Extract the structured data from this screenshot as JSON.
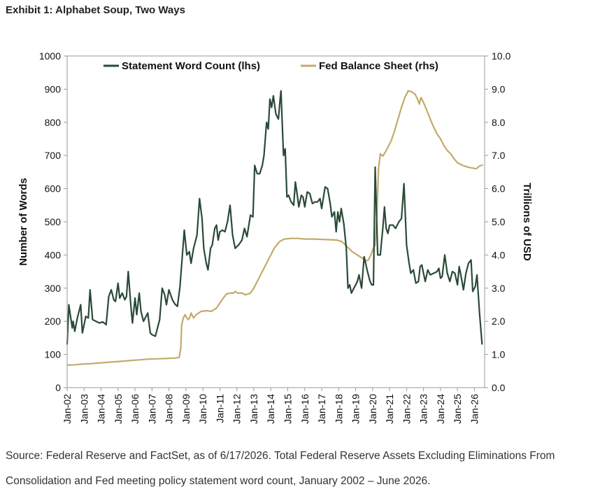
{
  "title": "Exhibit 1: Alphabet Soup, Two Ways",
  "source_note": "Source: Federal Reserve and FactSet, as of 6/17/2026. Total Federal Reserve Assets Excluding Eliminations From Consolidation and Fed meeting policy statement word count, January 2002 – June 2026.",
  "chart_data": {
    "type": "line",
    "title": "",
    "xlabel": "",
    "ylabel": "Number of Words",
    "y2label": "Trillions of USD",
    "xlim": [
      2002.0,
      2026.6
    ],
    "ylim": [
      0,
      1000
    ],
    "y2lim": [
      0,
      10
    ],
    "yticks": [
      "0",
      "100",
      "200",
      "300",
      "400",
      "500",
      "600",
      "700",
      "800",
      "900",
      "1000"
    ],
    "y2ticks": [
      "0.0",
      "1.0",
      "2.0",
      "3.0",
      "4.0",
      "5.0",
      "6.0",
      "7.0",
      "8.0",
      "9.0",
      "10.0"
    ],
    "xticks": [
      "Jan-02",
      "Jan-03",
      "Jan-04",
      "Jan-05",
      "Jan-06",
      "Jan-07",
      "Jan-08",
      "Jan-09",
      "Jan-10",
      "Jan-11",
      "Jan-12",
      "Jan-13",
      "Jan-14",
      "Jan-15",
      "Jan-16",
      "Jan-17",
      "Jan-18",
      "Jan-19",
      "Jan-20",
      "Jan-21",
      "Jan-22",
      "Jan-23",
      "Jan-24",
      "Jan-25",
      "Jan-26"
    ],
    "legend": "top-center",
    "grid": false,
    "series": [
      {
        "name": "Statement Word Count (lhs)",
        "axis": "left",
        "color": "#2a4a37",
        "points": [
          [
            2002.0,
            130
          ],
          [
            2002.1,
            250
          ],
          [
            2002.3,
            180
          ],
          [
            2002.35,
            200
          ],
          [
            2002.45,
            170
          ],
          [
            2002.6,
            210
          ],
          [
            2002.8,
            250
          ],
          [
            2002.9,
            165
          ],
          [
            2003.1,
            215
          ],
          [
            2003.25,
            210
          ],
          [
            2003.35,
            295
          ],
          [
            2003.5,
            205
          ],
          [
            2003.7,
            200
          ],
          [
            2003.9,
            195
          ],
          [
            2004.1,
            198
          ],
          [
            2004.3,
            190
          ],
          [
            2004.45,
            275
          ],
          [
            2004.6,
            295
          ],
          [
            2004.75,
            265
          ],
          [
            2004.85,
            260
          ],
          [
            2005.0,
            315
          ],
          [
            2005.1,
            270
          ],
          [
            2005.25,
            285
          ],
          [
            2005.4,
            265
          ],
          [
            2005.5,
            275
          ],
          [
            2005.6,
            350
          ],
          [
            2005.75,
            250
          ],
          [
            2005.85,
            195
          ],
          [
            2006.0,
            270
          ],
          [
            2006.1,
            220
          ],
          [
            2006.25,
            285
          ],
          [
            2006.35,
            230
          ],
          [
            2006.5,
            200
          ],
          [
            2006.6,
            210
          ],
          [
            2006.75,
            225
          ],
          [
            2006.9,
            165
          ],
          [
            2007.0,
            160
          ],
          [
            2007.2,
            155
          ],
          [
            2007.45,
            205
          ],
          [
            2007.6,
            300
          ],
          [
            2007.75,
            280
          ],
          [
            2007.85,
            250
          ],
          [
            2008.0,
            295
          ],
          [
            2008.2,
            265
          ],
          [
            2008.35,
            252
          ],
          [
            2008.5,
            245
          ],
          [
            2008.65,
            305
          ],
          [
            2008.9,
            475
          ],
          [
            2009.05,
            400
          ],
          [
            2009.2,
            410
          ],
          [
            2009.3,
            375
          ],
          [
            2009.45,
            420
          ],
          [
            2009.65,
            460
          ],
          [
            2009.8,
            570
          ],
          [
            2009.95,
            510
          ],
          [
            2010.05,
            420
          ],
          [
            2010.2,
            375
          ],
          [
            2010.3,
            355
          ],
          [
            2010.45,
            420
          ],
          [
            2010.55,
            430
          ],
          [
            2010.7,
            480
          ],
          [
            2010.8,
            490
          ],
          [
            2010.9,
            445
          ],
          [
            2011.0,
            470
          ],
          [
            2011.15,
            475
          ],
          [
            2011.3,
            470
          ],
          [
            2011.45,
            500
          ],
          [
            2011.6,
            550
          ],
          [
            2011.75,
            460
          ],
          [
            2011.9,
            420
          ],
          [
            2012.1,
            430
          ],
          [
            2012.3,
            445
          ],
          [
            2012.45,
            480
          ],
          [
            2012.6,
            455
          ],
          [
            2012.8,
            520
          ],
          [
            2012.95,
            515
          ],
          [
            2013.05,
            670
          ],
          [
            2013.2,
            645
          ],
          [
            2013.35,
            645
          ],
          [
            2013.5,
            670
          ],
          [
            2013.6,
            700
          ],
          [
            2013.75,
            800
          ],
          [
            2013.85,
            780
          ],
          [
            2013.95,
            870
          ],
          [
            2014.05,
            845
          ],
          [
            2014.15,
            880
          ],
          [
            2014.3,
            825
          ],
          [
            2014.45,
            810
          ],
          [
            2014.55,
            870
          ],
          [
            2014.6,
            895
          ],
          [
            2014.75,
            700
          ],
          [
            2014.85,
            720
          ],
          [
            2014.95,
            575
          ],
          [
            2015.05,
            580
          ],
          [
            2015.2,
            560
          ],
          [
            2015.35,
            550
          ],
          [
            2015.45,
            620
          ],
          [
            2015.55,
            585
          ],
          [
            2015.65,
            545
          ],
          [
            2015.8,
            580
          ],
          [
            2015.9,
            575
          ],
          [
            2016.0,
            545
          ],
          [
            2016.15,
            590
          ],
          [
            2016.3,
            585
          ],
          [
            2016.45,
            555
          ],
          [
            2016.6,
            560
          ],
          [
            2016.75,
            560
          ],
          [
            2016.9,
            570
          ],
          [
            2017.0,
            540
          ],
          [
            2017.2,
            605
          ],
          [
            2017.35,
            600
          ],
          [
            2017.5,
            555
          ],
          [
            2017.6,
            515
          ],
          [
            2017.75,
            530
          ],
          [
            2017.85,
            470
          ],
          [
            2017.95,
            530
          ],
          [
            2018.05,
            500
          ],
          [
            2018.15,
            540
          ],
          [
            2018.3,
            495
          ],
          [
            2018.45,
            420
          ],
          [
            2018.55,
            300
          ],
          [
            2018.65,
            310
          ],
          [
            2018.75,
            285
          ],
          [
            2018.9,
            300
          ],
          [
            2019.0,
            310
          ],
          [
            2019.1,
            320
          ],
          [
            2019.2,
            340
          ],
          [
            2019.35,
            300
          ],
          [
            2019.5,
            395
          ],
          [
            2019.7,
            350
          ],
          [
            2019.85,
            320
          ],
          [
            2019.95,
            310
          ],
          [
            2020.05,
            310
          ],
          [
            2020.15,
            665
          ],
          [
            2020.3,
            400
          ],
          [
            2020.45,
            400
          ],
          [
            2020.6,
            480
          ],
          [
            2020.7,
            545
          ],
          [
            2020.8,
            480
          ],
          [
            2020.9,
            465
          ],
          [
            2021.0,
            490
          ],
          [
            2021.2,
            490
          ],
          [
            2021.35,
            480
          ],
          [
            2021.55,
            500
          ],
          [
            2021.7,
            510
          ],
          [
            2021.85,
            615
          ],
          [
            2022.0,
            430
          ],
          [
            2022.15,
            375
          ],
          [
            2022.25,
            345
          ],
          [
            2022.4,
            355
          ],
          [
            2022.55,
            315
          ],
          [
            2022.7,
            320
          ],
          [
            2022.8,
            365
          ],
          [
            2022.9,
            370
          ],
          [
            2023.0,
            345
          ],
          [
            2023.1,
            320
          ],
          [
            2023.25,
            355
          ],
          [
            2023.4,
            340
          ],
          [
            2023.6,
            345
          ],
          [
            2023.8,
            350
          ],
          [
            2023.9,
            360
          ],
          [
            2024.0,
            330
          ],
          [
            2024.1,
            335
          ],
          [
            2024.25,
            400
          ],
          [
            2024.4,
            345
          ],
          [
            2024.55,
            320
          ],
          [
            2024.7,
            350
          ],
          [
            2024.85,
            345
          ],
          [
            2025.0,
            310
          ],
          [
            2025.1,
            365
          ],
          [
            2025.2,
            340
          ],
          [
            2025.35,
            295
          ],
          [
            2025.5,
            345
          ],
          [
            2025.65,
            375
          ],
          [
            2025.8,
            385
          ],
          [
            2025.9,
            290
          ],
          [
            2026.05,
            305
          ],
          [
            2026.15,
            340
          ],
          [
            2026.3,
            225
          ],
          [
            2026.45,
            130
          ]
        ]
      },
      {
        "name": "Fed Balance Sheet (rhs)",
        "axis": "right",
        "color": "#c4aa6c",
        "points": [
          [
            2002.0,
            0.68
          ],
          [
            2002.5,
            0.69
          ],
          [
            2002.9,
            0.71
          ],
          [
            2003.3,
            0.72
          ],
          [
            2003.8,
            0.74
          ],
          [
            2004.3,
            0.76
          ],
          [
            2004.8,
            0.78
          ],
          [
            2005.3,
            0.8
          ],
          [
            2005.8,
            0.82
          ],
          [
            2006.3,
            0.84
          ],
          [
            2006.8,
            0.86
          ],
          [
            2007.3,
            0.87
          ],
          [
            2007.8,
            0.88
          ],
          [
            2008.3,
            0.89
          ],
          [
            2008.6,
            0.91
          ],
          [
            2008.7,
            1.2
          ],
          [
            2008.75,
            1.9
          ],
          [
            2008.85,
            2.1
          ],
          [
            2008.95,
            2.2
          ],
          [
            2009.05,
            2.1
          ],
          [
            2009.15,
            2.05
          ],
          [
            2009.25,
            2.15
          ],
          [
            2009.3,
            2.25
          ],
          [
            2009.45,
            2.1
          ],
          [
            2009.6,
            2.2
          ],
          [
            2009.75,
            2.25
          ],
          [
            2009.9,
            2.3
          ],
          [
            2010.2,
            2.32
          ],
          [
            2010.5,
            2.3
          ],
          [
            2010.8,
            2.4
          ],
          [
            2011.0,
            2.55
          ],
          [
            2011.2,
            2.7
          ],
          [
            2011.4,
            2.83
          ],
          [
            2011.6,
            2.85
          ],
          [
            2011.8,
            2.85
          ],
          [
            2011.9,
            2.9
          ],
          [
            2012.05,
            2.85
          ],
          [
            2012.3,
            2.85
          ],
          [
            2012.5,
            2.8
          ],
          [
            2012.8,
            2.85
          ],
          [
            2013.0,
            3.0
          ],
          [
            2013.3,
            3.3
          ],
          [
            2013.6,
            3.6
          ],
          [
            2013.9,
            3.9
          ],
          [
            2014.2,
            4.2
          ],
          [
            2014.5,
            4.4
          ],
          [
            2014.8,
            4.48
          ],
          [
            2015.2,
            4.5
          ],
          [
            2015.6,
            4.5
          ],
          [
            2016.0,
            4.48
          ],
          [
            2016.5,
            4.48
          ],
          [
            2017.0,
            4.47
          ],
          [
            2017.5,
            4.46
          ],
          [
            2017.9,
            4.45
          ],
          [
            2018.2,
            4.4
          ],
          [
            2018.5,
            4.25
          ],
          [
            2018.8,
            4.1
          ],
          [
            2019.1,
            4.0
          ],
          [
            2019.4,
            3.9
          ],
          [
            2019.6,
            3.82
          ],
          [
            2019.75,
            3.85
          ],
          [
            2019.9,
            4.0
          ],
          [
            2020.0,
            4.15
          ],
          [
            2020.15,
            4.3
          ],
          [
            2020.25,
            5.2
          ],
          [
            2020.35,
            6.6
          ],
          [
            2020.45,
            7.05
          ],
          [
            2020.6,
            6.98
          ],
          [
            2020.75,
            7.1
          ],
          [
            2020.9,
            7.25
          ],
          [
            2021.1,
            7.45
          ],
          [
            2021.3,
            7.75
          ],
          [
            2021.5,
            8.1
          ],
          [
            2021.7,
            8.45
          ],
          [
            2021.9,
            8.75
          ],
          [
            2022.1,
            8.95
          ],
          [
            2022.3,
            8.92
          ],
          [
            2022.5,
            8.85
          ],
          [
            2022.65,
            8.7
          ],
          [
            2022.75,
            8.55
          ],
          [
            2022.85,
            8.75
          ],
          [
            2023.0,
            8.6
          ],
          [
            2023.2,
            8.35
          ],
          [
            2023.4,
            8.1
          ],
          [
            2023.6,
            7.85
          ],
          [
            2023.8,
            7.65
          ],
          [
            2024.0,
            7.5
          ],
          [
            2024.2,
            7.3
          ],
          [
            2024.4,
            7.15
          ],
          [
            2024.6,
            7.05
          ],
          [
            2024.8,
            6.9
          ],
          [
            2025.0,
            6.78
          ],
          [
            2025.3,
            6.7
          ],
          [
            2025.6,
            6.65
          ],
          [
            2025.9,
            6.62
          ],
          [
            2026.1,
            6.6
          ],
          [
            2026.3,
            6.68
          ],
          [
            2026.5,
            6.72
          ]
        ]
      }
    ]
  }
}
